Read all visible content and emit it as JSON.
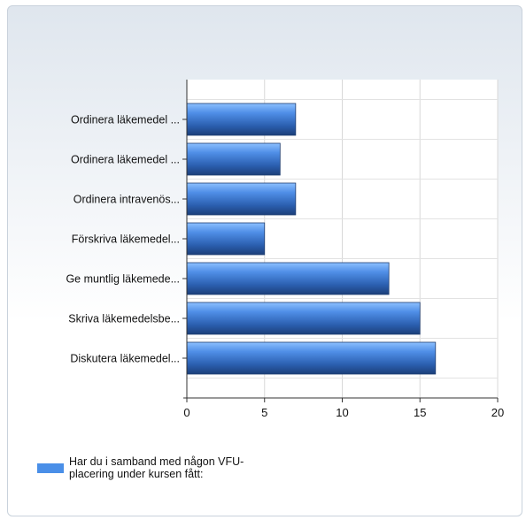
{
  "chart_data": {
    "type": "bar",
    "orientation": "horizontal",
    "categories": [
      "Ordinera läkemedel ...",
      "Ordinera läkemedel ...",
      "Ordinera intravenös...",
      "Förskriva läkemedel...",
      "Ge muntlig läkemede...",
      "Skriva läkemedelsbe...",
      "Diskutera läkemedel..."
    ],
    "series": [
      {
        "name": "Har du i samband med någon VFU-placering under kursen fått:",
        "values": [
          7,
          6,
          7,
          5,
          13,
          15,
          16
        ]
      }
    ],
    "xlim": [
      0,
      20
    ],
    "xticks": [
      0,
      5,
      10,
      15,
      20
    ],
    "grid": true,
    "legend_position": "bottom-left",
    "bar_color": "#4a8fe8"
  }
}
